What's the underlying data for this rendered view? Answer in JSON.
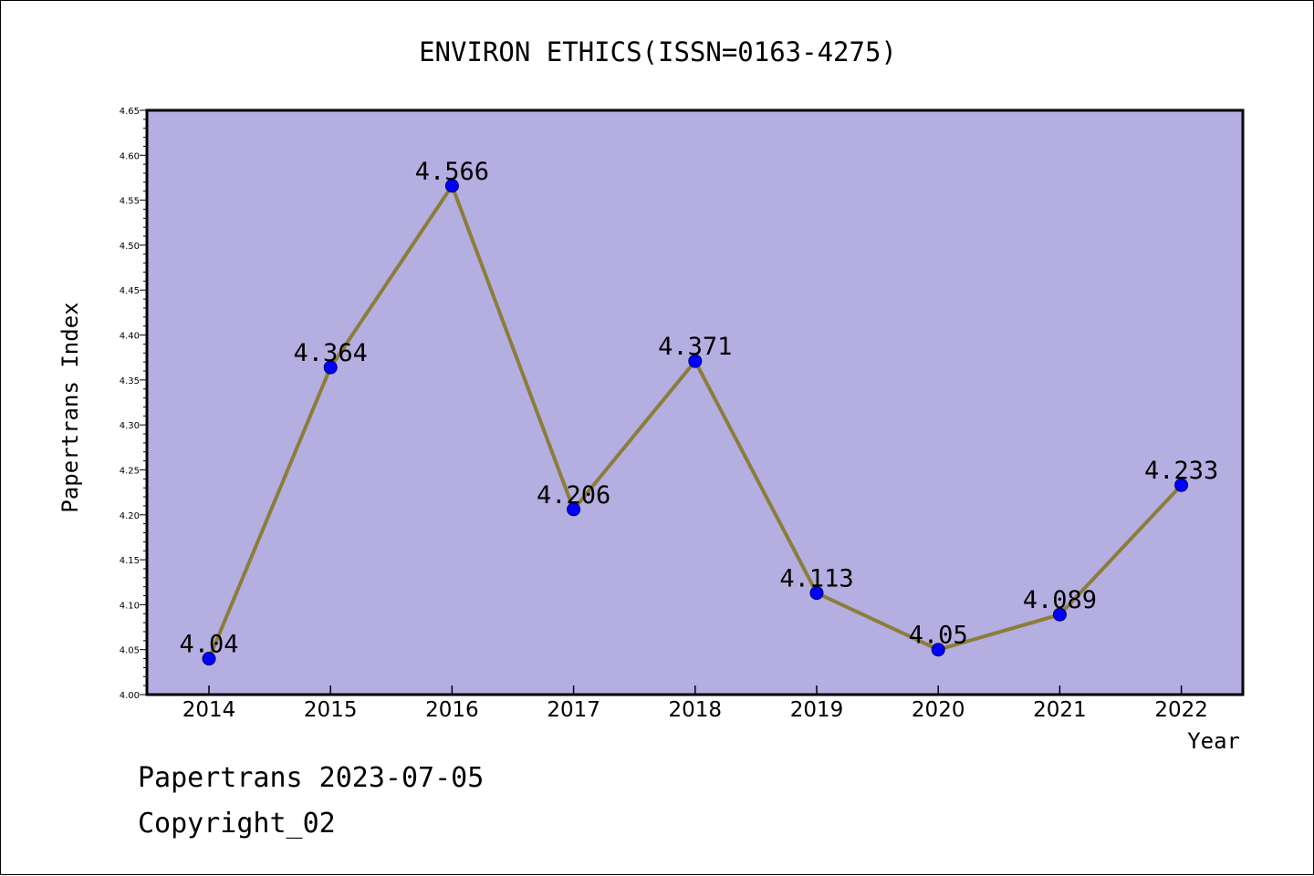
{
  "footer": {
    "line1": "Papertrans 2023-07-05",
    "line2": "Copyright_02"
  },
  "colors": {
    "plot_background": "#b5aee1",
    "line": "#8b7d3a",
    "marker": "#0000ff",
    "axis": "#000000"
  },
  "chart_data": {
    "type": "line",
    "title": "ENVIRON ETHICS(ISSN=0163-4275)",
    "xlabel": "Year",
    "ylabel": "Papertrans Index",
    "categories": [
      "2014",
      "2015",
      "2016",
      "2017",
      "2018",
      "2019",
      "2020",
      "2021",
      "2022"
    ],
    "series": [
      {
        "values": [
          4.04,
          4.364,
          4.566,
          4.206,
          4.371,
          4.113,
          4.05,
          4.089,
          4.233
        ],
        "labels": [
          "4.04",
          "4.364",
          "4.566",
          "4.206",
          "4.371",
          "4.113",
          "4.05",
          "4.089",
          "4.233"
        ]
      }
    ],
    "ylim": [
      4.0,
      4.65
    ],
    "yticks": [
      "4.00",
      "4.05",
      "4.10",
      "4.15",
      "4.20",
      "4.25",
      "4.30",
      "4.35",
      "4.40",
      "4.45",
      "4.50",
      "4.55",
      "4.60",
      "4.65"
    ],
    "grid": false,
    "legend": "none"
  }
}
